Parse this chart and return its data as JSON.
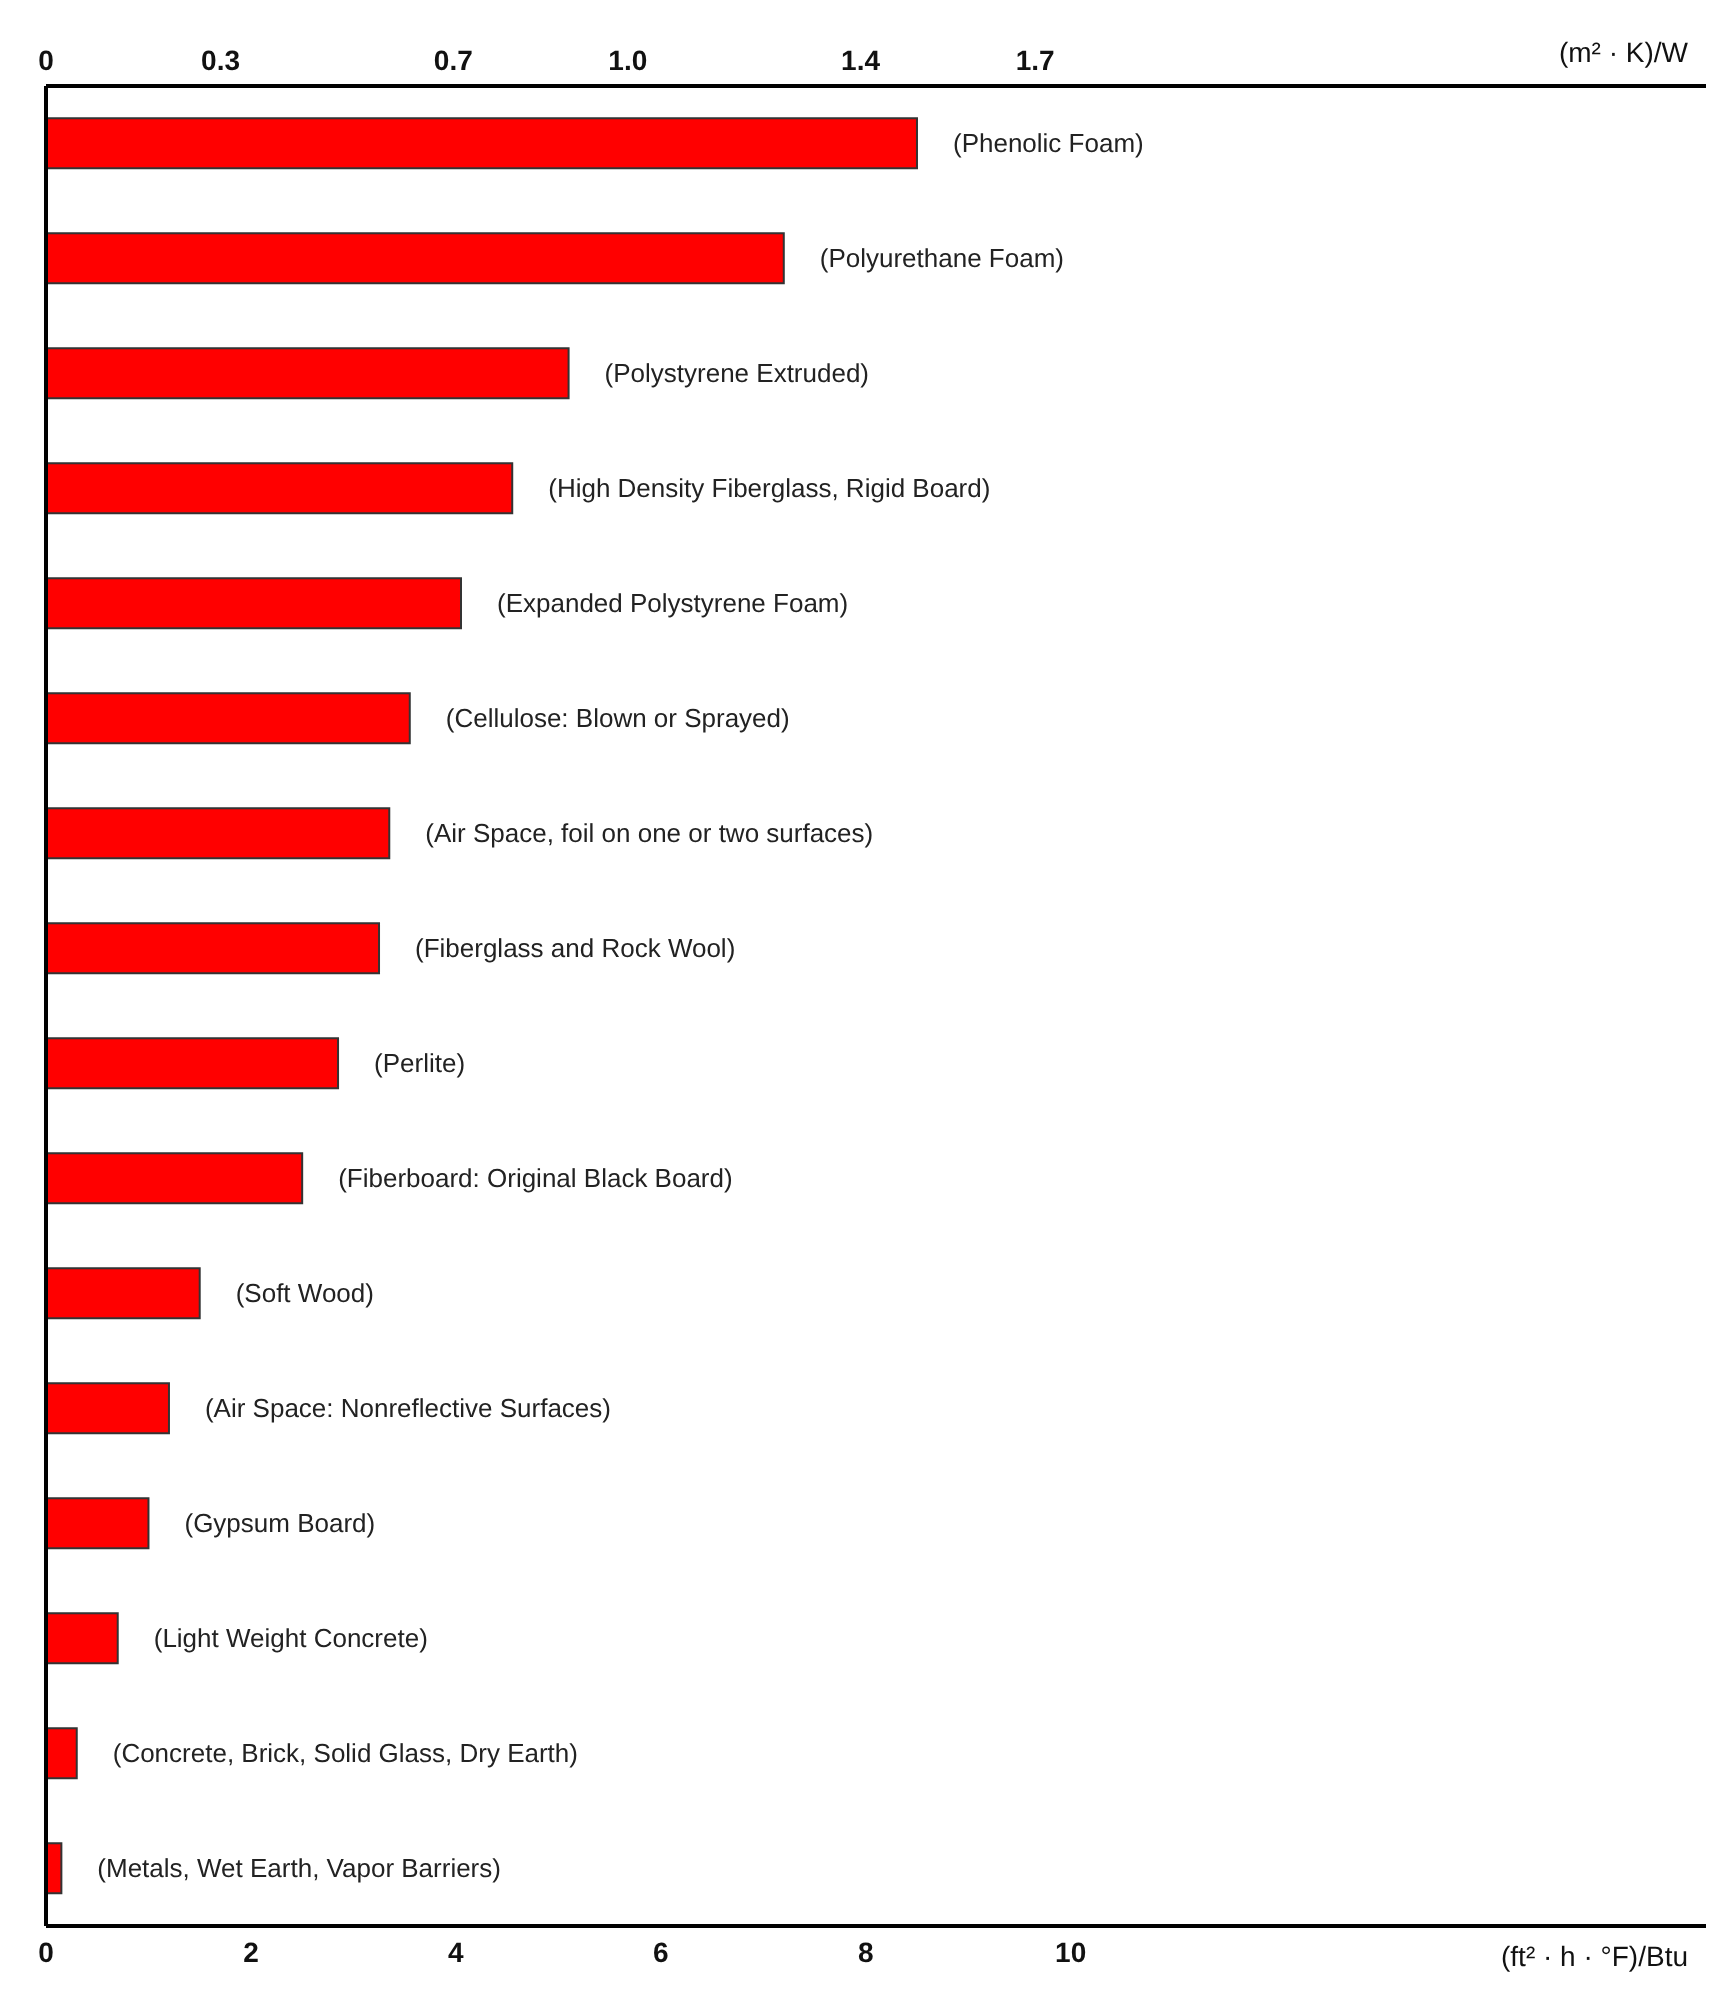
{
  "chart_data": {
    "type": "bar",
    "orientation": "horizontal",
    "categories": [
      "(Phenolic Foam)",
      "(Polyurethane Foam)",
      "(Polystyrene Extruded)",
      "(High Density Fiberglass, Rigid Board)",
      "(Expanded Polystyrene Foam)",
      "(Cellulose: Blown or Sprayed)",
      "(Air Space, foil on one or two surfaces)",
      "(Fiberglass and Rock Wool)",
      "(Perlite)",
      "(Fiberboard: Original Black Board)",
      "(Soft Wood)",
      "(Air Space: Nonreflective Surfaces)",
      "(Gypsum Board)",
      "(Light Weight Concrete)",
      "(Concrete, Brick, Solid Glass, Dry Earth)",
      "(Metals, Wet Earth, Vapor Barriers)"
    ],
    "values": [
      8.5,
      7.2,
      5.1,
      4.55,
      4.05,
      3.55,
      3.35,
      3.25,
      2.85,
      2.5,
      1.5,
      1.2,
      1.0,
      0.7,
      0.3,
      0.15
    ],
    "color": "#ff0000",
    "xlim": [
      0,
      16.2
    ],
    "xticks": [
      0,
      2,
      4,
      6,
      8,
      10
    ],
    "x2lim": [
      0,
      2.853
    ],
    "x2ticks": [
      0,
      {
        "value": 0.3,
        "label": "0.3"
      },
      {
        "value": 0.7,
        "label": "0.7"
      },
      {
        "value": 1.0,
        "label": "1.0"
      },
      {
        "value": 1.4,
        "label": "1.4"
      },
      {
        "value": 1.7,
        "label": "1.7"
      }
    ],
    "xlabel": "(ft² · h · °F)/Btu",
    "x2label": "(m² · K)/W"
  }
}
